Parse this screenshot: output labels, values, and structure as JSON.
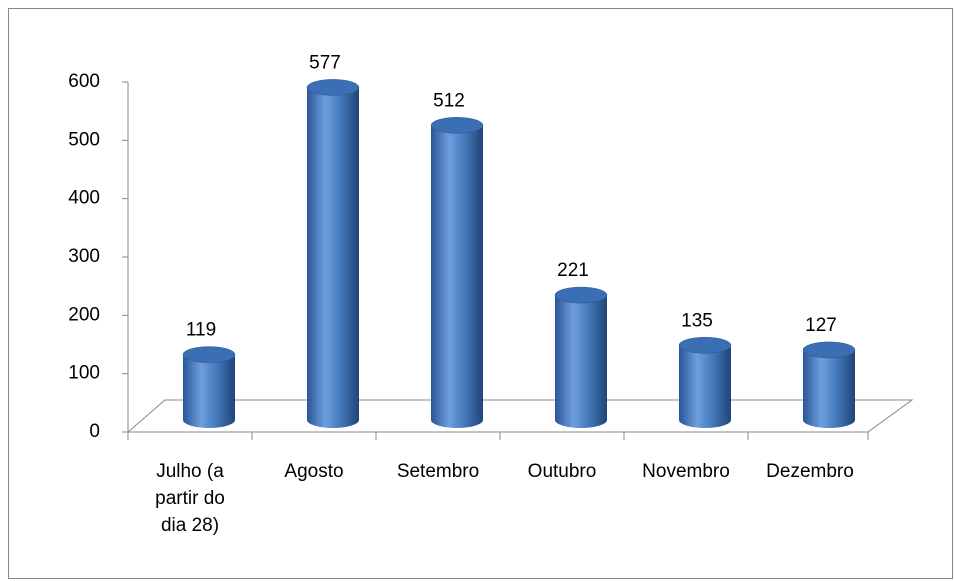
{
  "chart_data": {
    "type": "bar",
    "categories": [
      "Julho (a partir do dia 28)",
      "Agosto",
      "Setembro",
      "Outubro",
      "Novembro",
      "Dezembro"
    ],
    "values": [
      119,
      577,
      512,
      221,
      135,
      127
    ],
    "color": "#4a7fc1",
    "ylim": [
      0,
      600
    ],
    "yticks": [
      0,
      100,
      200,
      300,
      400,
      500,
      600
    ],
    "grid": false
  }
}
